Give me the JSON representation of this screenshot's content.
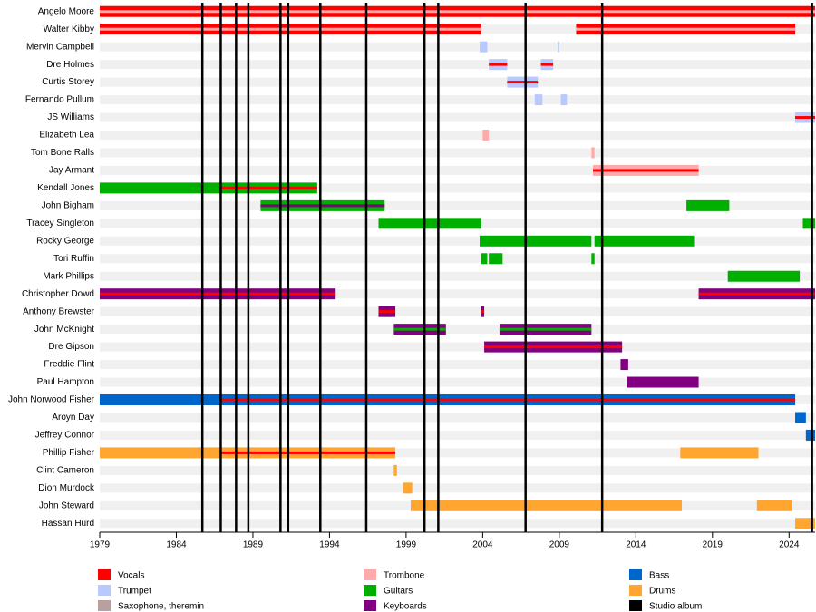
{
  "chart_data": {
    "type": "timeline",
    "xlim": [
      1979,
      2025.7
    ],
    "xticks": [
      1979,
      1984,
      1989,
      1994,
      1999,
      2004,
      2009,
      2014,
      2019,
      2024
    ],
    "roles": [
      {
        "name": "Vocals",
        "color": "#ff0000"
      },
      {
        "name": "Trumpet",
        "color": "#b9c9ff"
      },
      {
        "name": "Saxophone, theremin",
        "color": "#b9a0a0"
      },
      {
        "name": "Trombone",
        "color": "#ffaaaa"
      },
      {
        "name": "Guitars",
        "color": "#00b000"
      },
      {
        "name": "Keyboards",
        "color": "#800080"
      },
      {
        "name": "Bass",
        "color": "#0066cc"
      },
      {
        "name": "Drums",
        "color": "#ffa530"
      },
      {
        "name": "Studio album",
        "color": "#000000"
      }
    ],
    "albums": [
      1985.7,
      1986.9,
      1987.9,
      1988.7,
      1990.8,
      1991.3,
      1993.4,
      1996.4,
      2000.2,
      2001.1,
      2006.8,
      2011.8,
      2025.5
    ],
    "members": [
      {
        "name": "Angelo Moore",
        "periods": [
          {
            "start": 1979,
            "end": 2025.7,
            "role": "Vocals",
            "stripe": "Trombone"
          }
        ]
      },
      {
        "name": "Walter Kibby",
        "periods": [
          {
            "start": 1979,
            "end": 2003.9,
            "role": "Vocals",
            "stripe": "Trombone"
          },
          {
            "start": 2010.1,
            "end": 2024.4,
            "role": "Vocals",
            "stripe": "Trombone"
          }
        ]
      },
      {
        "name": "Mervin Campbell",
        "periods": [
          {
            "start": 2003.8,
            "end": 2004.3,
            "role": "Trumpet"
          },
          {
            "start": 2008.9,
            "end": 2009.0,
            "role": "Trumpet"
          }
        ]
      },
      {
        "name": "Dre Holmes",
        "periods": [
          {
            "start": 2004.4,
            "end": 2005.6,
            "role": "Trumpet",
            "stripe": "Vocals"
          },
          {
            "start": 2007.8,
            "end": 2008.6,
            "role": "Trumpet",
            "stripe": "Vocals"
          }
        ]
      },
      {
        "name": "Curtis Storey",
        "periods": [
          {
            "start": 2005.6,
            "end": 2007.6,
            "role": "Trumpet",
            "stripe": "Vocals"
          }
        ]
      },
      {
        "name": "Fernando Pullum",
        "periods": [
          {
            "start": 2007.4,
            "end": 2007.9,
            "role": "Trumpet"
          },
          {
            "start": 2009.1,
            "end": 2009.5,
            "role": "Trumpet"
          }
        ]
      },
      {
        "name": "JS Williams",
        "periods": [
          {
            "start": 2024.4,
            "end": 2025.7,
            "role": "Trumpet",
            "stripe": "Vocals"
          }
        ]
      },
      {
        "name": "Elizabeth Lea",
        "periods": [
          {
            "start": 2004.0,
            "end": 2004.4,
            "role": "Trombone"
          }
        ]
      },
      {
        "name": "Tom Bone Ralls",
        "periods": [
          {
            "start": 2011.1,
            "end": 2011.3,
            "role": "Trombone"
          }
        ]
      },
      {
        "name": "Jay Armant",
        "periods": [
          {
            "start": 2011.2,
            "end": 2018.1,
            "role": "Trombone",
            "stripe": "Vocals"
          }
        ]
      },
      {
        "name": "Kendall Jones",
        "periods": [
          {
            "start": 1979,
            "end": 1986.9,
            "role": "Guitars"
          },
          {
            "start": 1986.9,
            "end": 1993.2,
            "role": "Guitars",
            "stripe": "Vocals"
          }
        ]
      },
      {
        "name": "John Bigham",
        "periods": [
          {
            "start": 1989.5,
            "end": 1997.6,
            "role": "Guitars",
            "stripe": "Keyboards"
          },
          {
            "start": 2017.3,
            "end": 2020.1,
            "role": "Guitars"
          }
        ]
      },
      {
        "name": "Tracey Singleton",
        "periods": [
          {
            "start": 1997.2,
            "end": 2003.9,
            "role": "Guitars"
          },
          {
            "start": 2024.9,
            "end": 2025.7,
            "role": "Guitars"
          }
        ]
      },
      {
        "name": "Rocky George",
        "periods": [
          {
            "start": 2003.8,
            "end": 2011.1,
            "role": "Guitars"
          },
          {
            "start": 2011.3,
            "end": 2017.8,
            "role": "Guitars"
          }
        ]
      },
      {
        "name": "Tori Ruffin",
        "periods": [
          {
            "start": 2003.9,
            "end": 2004.3,
            "role": "Guitars"
          },
          {
            "start": 2004.4,
            "end": 2005.3,
            "role": "Guitars"
          },
          {
            "start": 2011.1,
            "end": 2011.3,
            "role": "Guitars"
          }
        ]
      },
      {
        "name": "Mark Phillips",
        "periods": [
          {
            "start": 2020.0,
            "end": 2024.7,
            "role": "Guitars"
          }
        ]
      },
      {
        "name": "Christopher Dowd",
        "periods": [
          {
            "start": 1979,
            "end": 1994.4,
            "role": "Keyboards",
            "stripe": "Vocals"
          },
          {
            "start": 2018.1,
            "end": 2025.7,
            "role": "Keyboards",
            "stripe": "Vocals"
          }
        ]
      },
      {
        "name": "Anthony Brewster",
        "periods": [
          {
            "start": 1997.2,
            "end": 1998.3,
            "role": "Keyboards",
            "stripe": "Vocals"
          },
          {
            "start": 2003.9,
            "end": 2004.1,
            "role": "Keyboards",
            "stripe": "Vocals"
          }
        ]
      },
      {
        "name": "John McKnight",
        "periods": [
          {
            "start": 1998.2,
            "end": 2001.6,
            "role": "Keyboards",
            "stripe": "Guitars"
          },
          {
            "start": 2005.1,
            "end": 2011.1,
            "role": "Keyboards",
            "stripe": "Guitars"
          }
        ]
      },
      {
        "name": "Dre Gipson",
        "periods": [
          {
            "start": 2004.1,
            "end": 2013.1,
            "role": "Keyboards",
            "stripe": "Vocals"
          }
        ]
      },
      {
        "name": "Freddie Flint",
        "periods": [
          {
            "start": 2013.0,
            "end": 2013.5,
            "role": "Keyboards"
          }
        ]
      },
      {
        "name": "Paul Hampton",
        "periods": [
          {
            "start": 2013.4,
            "end": 2018.1,
            "role": "Keyboards"
          }
        ]
      },
      {
        "name": "John Norwood Fisher",
        "periods": [
          {
            "start": 1979,
            "end": 1986.9,
            "role": "Bass"
          },
          {
            "start": 1986.9,
            "end": 2024.4,
            "role": "Bass",
            "stripe": "Vocals"
          }
        ]
      },
      {
        "name": "Aroyn Day",
        "periods": [
          {
            "start": 2024.4,
            "end": 2025.1,
            "role": "Bass"
          }
        ]
      },
      {
        "name": "Jeffrey Connor",
        "periods": [
          {
            "start": 2025.1,
            "end": 2025.7,
            "role": "Bass"
          }
        ]
      },
      {
        "name": "Phillip Fisher",
        "periods": [
          {
            "start": 1979,
            "end": 1986.9,
            "role": "Drums"
          },
          {
            "start": 1986.9,
            "end": 1998.3,
            "role": "Drums",
            "stripe": "Vocals"
          },
          {
            "start": 2016.9,
            "end": 2022.0,
            "role": "Drums"
          }
        ]
      },
      {
        "name": "Clint Cameron",
        "periods": [
          {
            "start": 1998.2,
            "end": 1998.4,
            "role": "Drums"
          }
        ]
      },
      {
        "name": "Dion Murdock",
        "periods": [
          {
            "start": 1998.8,
            "end": 1999.4,
            "role": "Drums"
          }
        ]
      },
      {
        "name": "John Steward",
        "periods": [
          {
            "start": 1999.3,
            "end": 2017.0,
            "role": "Drums"
          },
          {
            "start": 2021.9,
            "end": 2024.2,
            "role": "Drums"
          }
        ]
      },
      {
        "name": "Hassan Hurd",
        "periods": [
          {
            "start": 2024.4,
            "end": 2025.7,
            "role": "Drums"
          }
        ]
      }
    ]
  }
}
